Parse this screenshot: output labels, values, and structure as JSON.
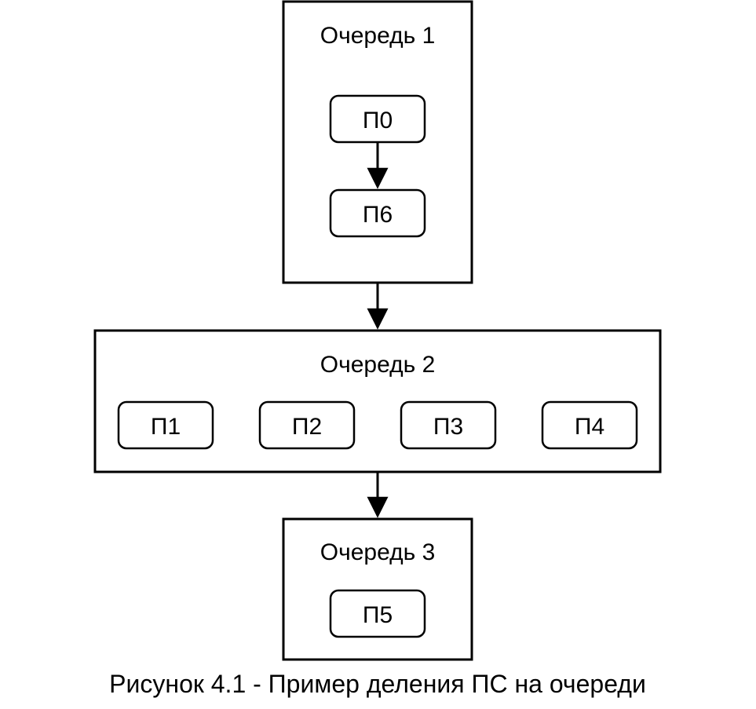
{
  "queues": [
    {
      "title": "Очередь 1",
      "items": [
        "П0",
        "П6"
      ]
    },
    {
      "title": "Очередь 2",
      "items": [
        "П1",
        "П2",
        "П3",
        "П4"
      ]
    },
    {
      "title": "Очередь 3",
      "items": [
        "П5"
      ]
    }
  ],
  "caption": "Рисунок 4.1 - Пример деления ПС на очереди",
  "colors": {
    "stroke": "#000000",
    "fill": "#ffffff"
  }
}
